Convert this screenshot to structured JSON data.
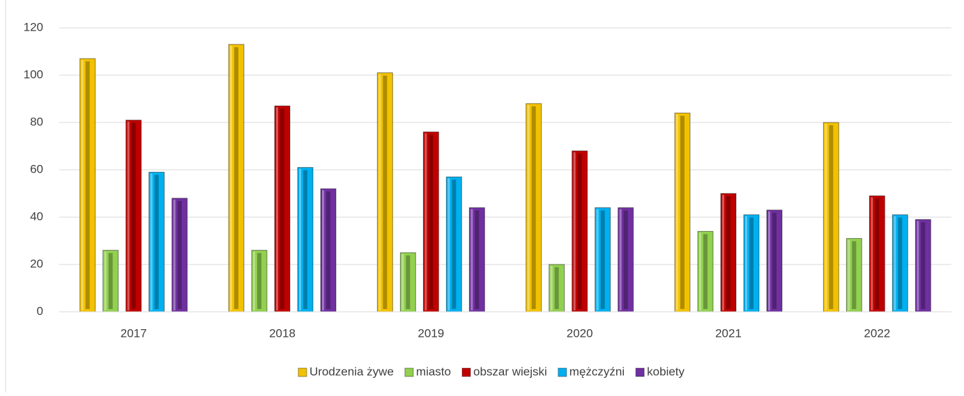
{
  "chart_data": {
    "type": "bar",
    "categories": [
      "2017",
      "2018",
      "2019",
      "2020",
      "2021",
      "2022"
    ],
    "series": [
      {
        "name": "Urodzenia żywe",
        "color": "#f2c200",
        "values": [
          107,
          113,
          101,
          88,
          84,
          80
        ]
      },
      {
        "name": "miasto",
        "color": "#92d050",
        "values": [
          26,
          26,
          25,
          20,
          34,
          31
        ]
      },
      {
        "name": "obszar wiejski",
        "color": "#c00000",
        "values": [
          81,
          87,
          76,
          68,
          50,
          49
        ]
      },
      {
        "name": "mężczyźni",
        "color": "#00b0f0",
        "values": [
          59,
          61,
          57,
          44,
          41,
          41
        ]
      },
      {
        "name": "kobiety",
        "color": "#7030a0",
        "values": [
          48,
          52,
          44,
          44,
          43,
          39
        ]
      }
    ],
    "ylim": [
      0,
      120
    ],
    "yticks": [
      0,
      20,
      40,
      60,
      80,
      100,
      120
    ],
    "grid": true,
    "legend": "bottom"
  }
}
